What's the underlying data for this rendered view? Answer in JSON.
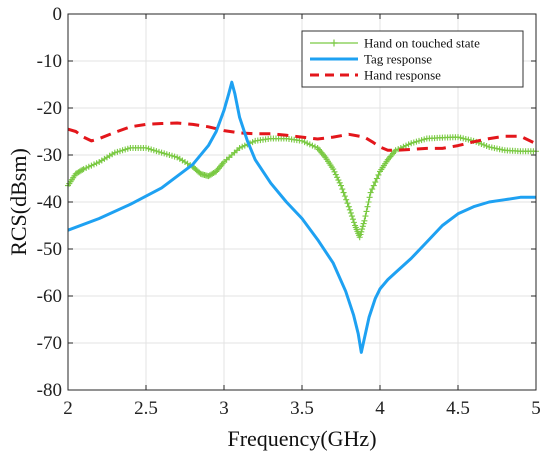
{
  "chart_data": {
    "type": "line",
    "title": "",
    "xlabel": "Frequency(GHz)",
    "ylabel": "RCS(dBsm)",
    "xlim": [
      2,
      5
    ],
    "ylim": [
      -80,
      0
    ],
    "xticks": [
      "2",
      "2.5",
      "3",
      "3.5",
      "4",
      "4.5",
      "5"
    ],
    "yticks": [
      "0",
      "-10",
      "-20",
      "-30",
      "-40",
      "-50",
      "-60",
      "-70",
      "-80"
    ],
    "grid": true,
    "legend_position": "top-right",
    "series": [
      {
        "name": "Hand on touched state",
        "color": "#7ac943",
        "marker": "plus",
        "x": [
          2.0,
          2.05,
          2.1,
          2.2,
          2.3,
          2.4,
          2.5,
          2.6,
          2.7,
          2.8,
          2.85,
          2.9,
          2.95,
          3.0,
          3.1,
          3.2,
          3.3,
          3.4,
          3.5,
          3.6,
          3.65,
          3.7,
          3.75,
          3.8,
          3.84,
          3.87,
          3.9,
          3.94,
          4.0,
          4.05,
          4.1,
          4.2,
          4.3,
          4.4,
          4.5,
          4.6,
          4.7,
          4.8,
          4.9,
          5.0
        ],
        "y": [
          -36.5,
          -34,
          -33,
          -31.5,
          -29.5,
          -28.5,
          -28.5,
          -29.5,
          -30.5,
          -32.5,
          -34,
          -34.5,
          -33.5,
          -31.5,
          -28.5,
          -27,
          -26.5,
          -26.5,
          -27,
          -28.5,
          -30.5,
          -33,
          -36.5,
          -41,
          -45,
          -47.5,
          -44,
          -38,
          -33.5,
          -31,
          -29,
          -27.5,
          -26.5,
          -26.3,
          -26.2,
          -27,
          -28.3,
          -29,
          -29.2,
          -29.2
        ]
      },
      {
        "name": "Tag response",
        "color": "#1ea1f2",
        "marker": "none",
        "x": [
          2.0,
          2.2,
          2.4,
          2.6,
          2.8,
          2.9,
          2.95,
          3.0,
          3.03,
          3.05,
          3.07,
          3.1,
          3.15,
          3.2,
          3.3,
          3.4,
          3.5,
          3.6,
          3.7,
          3.78,
          3.83,
          3.86,
          3.88,
          3.9,
          3.93,
          3.97,
          4.0,
          4.05,
          4.1,
          4.2,
          4.3,
          4.4,
          4.5,
          4.6,
          4.7,
          4.8,
          4.9,
          5.0
        ],
        "y": [
          -46,
          -43.5,
          -40.5,
          -37,
          -32,
          -28,
          -25,
          -20.5,
          -17,
          -14.5,
          -17,
          -22,
          -27,
          -31,
          -36,
          -40,
          -43.5,
          -48,
          -53,
          -59,
          -64,
          -68,
          -72,
          -69,
          -64.5,
          -60.5,
          -58.5,
          -56.5,
          -55,
          -52,
          -48.5,
          -45,
          -42.5,
          -41,
          -40,
          -39.5,
          -39,
          -39
        ]
      },
      {
        "name": "Hand response",
        "color": "#e3161b",
        "marker": "none",
        "dash": true,
        "x": [
          2.0,
          2.05,
          2.1,
          2.15,
          2.2,
          2.3,
          2.4,
          2.5,
          2.6,
          2.7,
          2.8,
          2.9,
          3.0,
          3.1,
          3.2,
          3.3,
          3.4,
          3.5,
          3.6,
          3.7,
          3.8,
          3.9,
          3.95,
          4.0,
          4.05,
          4.1,
          4.2,
          4.3,
          4.4,
          4.5,
          4.6,
          4.7,
          4.8,
          4.9,
          5.0
        ],
        "y": [
          -24.5,
          -25,
          -26.2,
          -27,
          -26.5,
          -25.2,
          -24,
          -23.5,
          -23.3,
          -23.2,
          -23.5,
          -24,
          -24.8,
          -25.3,
          -25.5,
          -25.5,
          -25.8,
          -26.2,
          -26.6,
          -26.2,
          -25.6,
          -26.2,
          -27.2,
          -28.3,
          -29,
          -29,
          -28.8,
          -28.6,
          -28.6,
          -28,
          -27.2,
          -26.5,
          -26,
          -26,
          -27.6
        ]
      }
    ]
  }
}
